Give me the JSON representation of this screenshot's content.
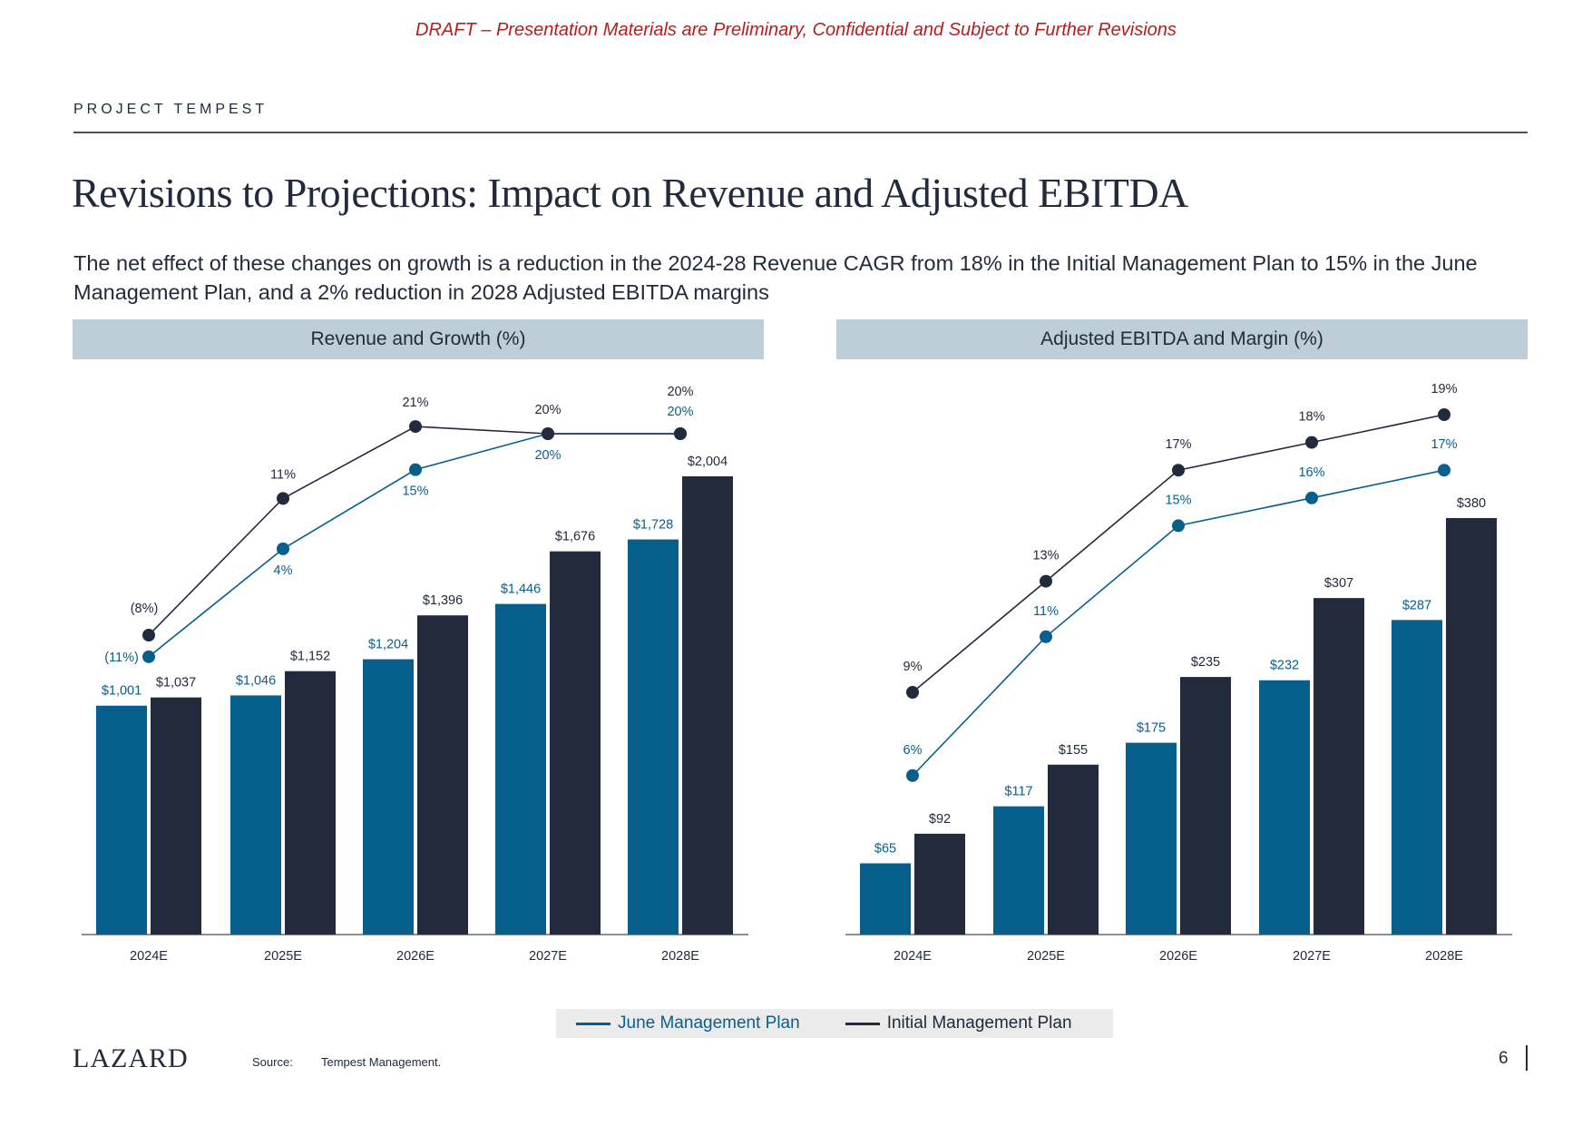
{
  "draft_notice": "DRAFT – Presentation Materials are Preliminary, Confidential and Subject to Further Revisions",
  "project_name": "PROJECT TEMPEST",
  "title": "Revisions to Projections: Impact on Revenue and Adjusted EBITDA",
  "subtitle": "The net effect of these changes on growth is a reduction in the 2024-28 Revenue CAGR from 18% in the Initial Management Plan to 15% in the June Management Plan, and a 2% reduction in 2028 Adjusted EBITDA margins",
  "colors": {
    "june": "#075F8C",
    "initial": "#232A3C",
    "banner": "#BDCED9",
    "draft": "#B41E1E"
  },
  "legend": [
    {
      "label": "June Management Plan",
      "color": "#075F8C"
    },
    {
      "label": "Initial Management Plan",
      "color": "#232A3C"
    }
  ],
  "footer": {
    "logo": "LAZARD",
    "source_label": "Source:",
    "source_text": "Tempest Management.",
    "page_number": "6"
  },
  "chart_data": [
    {
      "type": "bar",
      "title": "Revenue and Growth (%)",
      "categories": [
        "2024E",
        "2025E",
        "2026E",
        "2027E",
        "2028E"
      ],
      "series": [
        {
          "name": "June Management Plan",
          "values": [
            1001,
            1046,
            1204,
            1446,
            1728
          ],
          "labels": [
            "$1,001",
            "$1,046",
            "$1,204",
            "$1,446",
            "$1,728"
          ]
        },
        {
          "name": "Initial Management Plan",
          "values": [
            1037,
            1152,
            1396,
            1676,
            2004
          ],
          "labels": [
            "$1,037",
            "$1,152",
            "$1,396",
            "$1,676",
            "$2,004"
          ]
        }
      ],
      "line_series": [
        {
          "name": "June Management Plan",
          "metric": "Growth (%)",
          "values": [
            -11,
            4,
            15,
            20,
            20
          ],
          "labels": [
            "(11%)",
            "4%",
            "15%",
            "20%",
            "20%"
          ]
        },
        {
          "name": "Initial Management Plan",
          "metric": "Growth (%)",
          "values": [
            -8,
            11,
            21,
            20,
            20
          ],
          "labels": [
            "(8%)",
            "11%",
            "21%",
            "20%",
            "20%"
          ]
        }
      ],
      "xlabel": "",
      "ylabel": "",
      "unit": "$",
      "grid": false,
      "legend": "bottom"
    },
    {
      "type": "bar",
      "title": "Adjusted EBITDA and Margin (%)",
      "categories": [
        "2024E",
        "2025E",
        "2026E",
        "2027E",
        "2028E"
      ],
      "series": [
        {
          "name": "June Management Plan",
          "values": [
            65,
            117,
            175,
            232,
            287
          ],
          "labels": [
            "$65",
            "$117",
            "$175",
            "$232",
            "$287"
          ]
        },
        {
          "name": "Initial Management Plan",
          "values": [
            92,
            155,
            235,
            307,
            380
          ],
          "labels": [
            "$92",
            "$155",
            "$235",
            "$307",
            "$380"
          ]
        }
      ],
      "line_series": [
        {
          "name": "June Management Plan",
          "metric": "Margin (%)",
          "values": [
            6,
            11,
            15,
            16,
            17
          ],
          "labels": [
            "6%",
            "11%",
            "15%",
            "16%",
            "17%"
          ]
        },
        {
          "name": "Initial Management Plan",
          "metric": "Margin (%)",
          "values": [
            9,
            13,
            17,
            18,
            19
          ],
          "labels": [
            "9%",
            "13%",
            "17%",
            "18%",
            "19%"
          ]
        }
      ],
      "xlabel": "",
      "ylabel": "",
      "unit": "$",
      "grid": false,
      "legend": "bottom"
    }
  ]
}
